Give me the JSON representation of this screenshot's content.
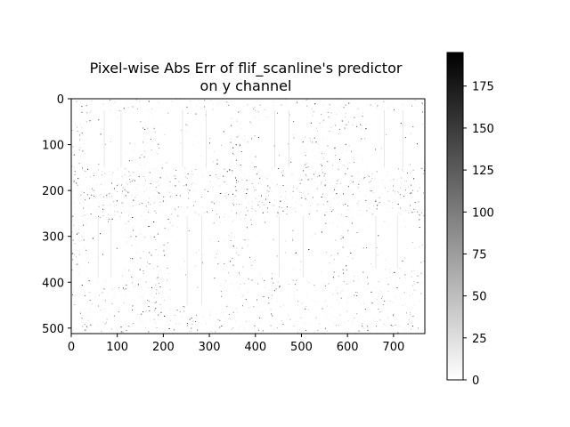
{
  "chart_data": {
    "type": "heatmap",
    "title_line1": "Pixel-wise Abs Err of flif_scanline's predictor",
    "title_line2": "on y channel",
    "xlabel": "",
    "ylabel": "",
    "colormap": "gray_r",
    "image_width": 768,
    "image_height": 512,
    "xlim": [
      0,
      768
    ],
    "ylim": [
      512,
      0
    ],
    "x_ticks": [
      0,
      100,
      200,
      300,
      400,
      500,
      600,
      700
    ],
    "y_ticks": [
      0,
      100,
      200,
      300,
      400,
      500
    ],
    "colorbar": {
      "min": 0,
      "max": 195,
      "ticks": [
        0,
        25,
        50,
        75,
        100,
        125,
        150,
        175
      ]
    },
    "low_error_regions": [
      {
        "x": [
          35,
          145
        ],
        "y": [
          25,
          150
        ]
      },
      {
        "x": [
          190,
          345
        ],
        "y": [
          25,
          150
        ]
      },
      {
        "x": [
          410,
          505
        ],
        "y": [
          25,
          150
        ]
      },
      {
        "x": [
          640,
          760
        ],
        "y": [
          25,
          150
        ]
      },
      {
        "x": [
          30,
          115
        ],
        "y": [
          260,
          390
        ]
      },
      {
        "x": [
          220,
          315
        ],
        "y": [
          255,
          450
        ]
      },
      {
        "x": [
          400,
          555
        ],
        "y": [
          255,
          390
        ]
      },
      {
        "x": [
          615,
          755
        ],
        "y": [
          255,
          370
        ]
      }
    ]
  }
}
